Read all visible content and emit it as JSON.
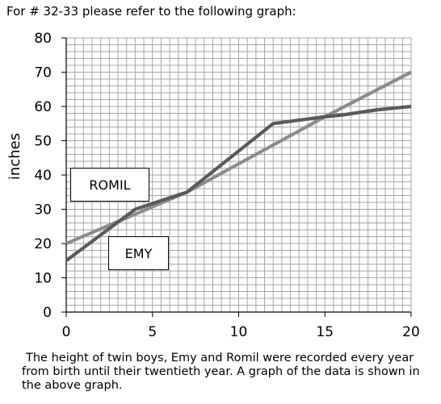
{
  "header": {
    "text": "For # 32-33 please refer to the following graph:"
  },
  "caption": {
    "lines": [
      "The height of twin boys, Emy and Romil were recorded every year",
      "from birth until their twentieth year. A graph of the data is shown in",
      "the above graph."
    ]
  },
  "chart_data": {
    "type": "line",
    "title": "",
    "xlabel": "",
    "ylabel": "inches",
    "xlim": [
      0,
      20
    ],
    "ylim": [
      0,
      80
    ],
    "x_ticks": [
      0,
      5,
      10,
      15,
      20
    ],
    "y_ticks": [
      0,
      10,
      20,
      30,
      40,
      50,
      60,
      70,
      80
    ],
    "grid": true,
    "series": [
      {
        "name": "EMY",
        "color": "#5a5a5a",
        "x": [
          0,
          4,
          7,
          12,
          15,
          16,
          18,
          20
        ],
        "y": [
          15,
          30,
          35,
          55,
          57,
          57.5,
          59,
          60
        ]
      },
      {
        "name": "ROMIL",
        "color": "#8c8c8c",
        "x": [
          0,
          7,
          15,
          20
        ],
        "y": [
          20,
          35,
          57,
          70
        ]
      }
    ]
  }
}
